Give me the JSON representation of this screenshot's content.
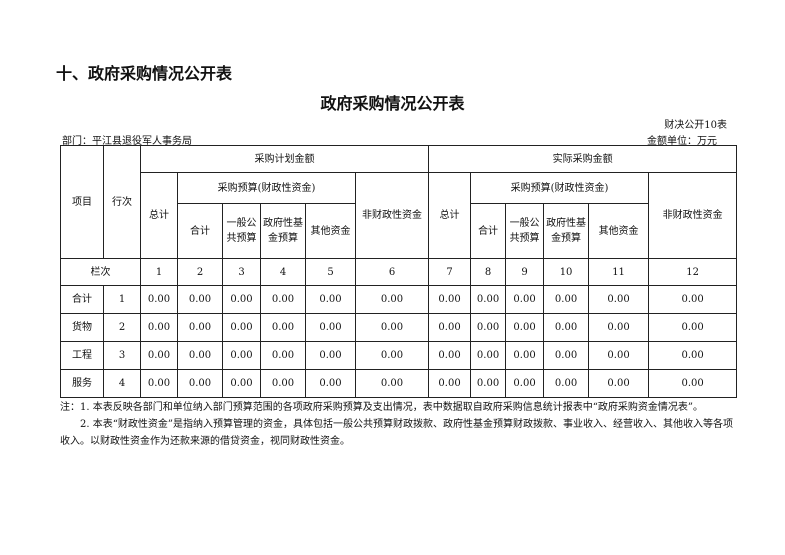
{
  "section_title": "十、政府采购情况公开表",
  "title": "政府采购情况公开表",
  "table_no": "财决公开10表",
  "department": "部门：平江县退役军人事务局",
  "unit": "金额单位：万元",
  "headers": {
    "item": "项目",
    "row_no": "行次",
    "plan": "采购计划金额",
    "actual": "实际采购金额",
    "budget": "采购预算(财政性资金)",
    "total": "总计",
    "subtotal": "合计",
    "general": "一般公共预算",
    "fund": "政府性基金预算",
    "other": "其他资金",
    "nonfiscal": "非财政性资金",
    "col_label": "栏次"
  },
  "col_numbers": [
    "1",
    "2",
    "3",
    "4",
    "5",
    "6",
    "7",
    "8",
    "9",
    "10",
    "11",
    "12"
  ],
  "rows": [
    {
      "name": "合计",
      "no": "1",
      "values": [
        "0.00",
        "0.00",
        "0.00",
        "0.00",
        "0.00",
        "0.00",
        "0.00",
        "0.00",
        "0.00",
        "0.00",
        "0.00",
        "0.00"
      ]
    },
    {
      "name": "货物",
      "no": "2",
      "values": [
        "0.00",
        "0.00",
        "0.00",
        "0.00",
        "0.00",
        "0.00",
        "0.00",
        "0.00",
        "0.00",
        "0.00",
        "0.00",
        "0.00"
      ]
    },
    {
      "name": "工程",
      "no": "3",
      "values": [
        "0.00",
        "0.00",
        "0.00",
        "0.00",
        "0.00",
        "0.00",
        "0.00",
        "0.00",
        "0.00",
        "0.00",
        "0.00",
        "0.00"
      ]
    },
    {
      "name": "服务",
      "no": "4",
      "values": [
        "0.00",
        "0.00",
        "0.00",
        "0.00",
        "0.00",
        "0.00",
        "0.00",
        "0.00",
        "0.00",
        "0.00",
        "0.00",
        "0.00"
      ]
    }
  ],
  "notes": [
    "注：1. 本表反映各部门和单位纳入部门预算范围的各项政府采购预算及支出情况，表中数据取自政府采购信息统计报表中“政府采购资金情况表”。",
    "　　2. 本表“财政性资金”是指纳入预算管理的资金，具体包括一般公共预算财政拨款、政府性基金预算财政拨款、事业收入、经营收入、其他收入等各项收入。以财政性资金作为还款来源的借贷资金，视同财政性资金。"
  ]
}
